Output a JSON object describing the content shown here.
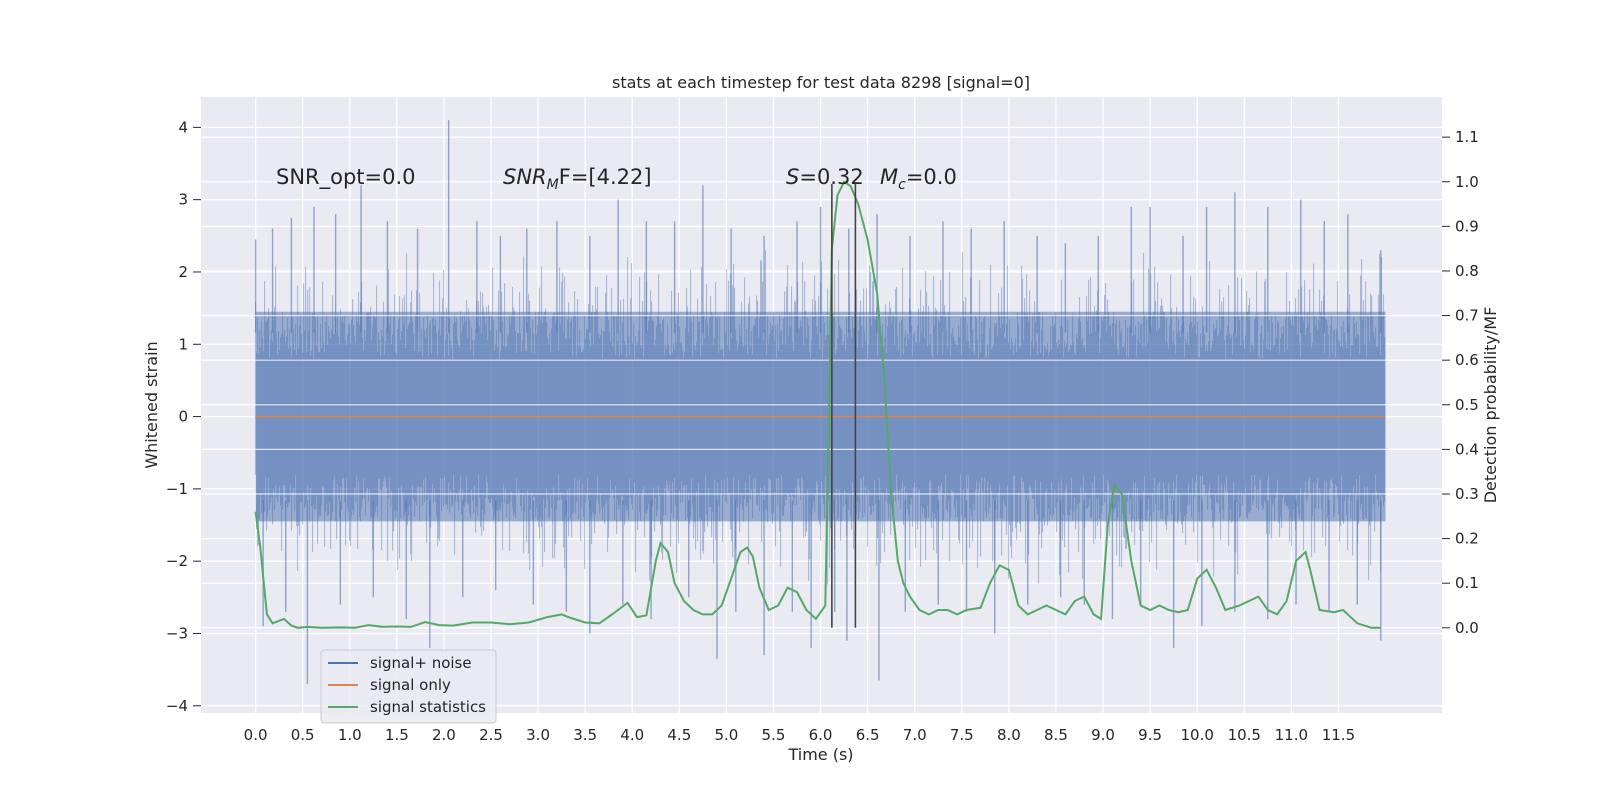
{
  "chart_data": {
    "type": "line",
    "title": "stats at each timestep for test data 8298 [signal=0]",
    "xlabel": "Time (s)",
    "ylabel": "Whitened strain",
    "y2label": "Detection probability/MF",
    "xlim": [
      -0.58,
      12.6
    ],
    "ylim": [
      -4.1,
      4.42
    ],
    "y2lim": [
      -0.191,
      1.19
    ],
    "xticks": [
      0.0,
      0.5,
      1.0,
      1.5,
      2.0,
      2.5,
      3.0,
      3.5,
      4.0,
      4.5,
      5.0,
      5.5,
      6.0,
      6.5,
      7.0,
      7.5,
      8.0,
      8.5,
      9.0,
      9.5,
      10.0,
      10.5,
      11.0,
      11.5
    ],
    "xtick_labels": [
      "0.0",
      "0.5",
      "1.0",
      "1.5",
      "2.0",
      "2.5",
      "3.0",
      "3.5",
      "4.0",
      "4.5",
      "5.0",
      "5.5",
      "6.0",
      "6.5",
      "7.0",
      "7.5",
      "8.0",
      "8.5",
      "9.0",
      "9.5",
      "10.0",
      "10.5",
      "11.0",
      "11.5"
    ],
    "yticks": [
      -4,
      -3,
      -2,
      -1,
      0,
      1,
      2,
      3,
      4
    ],
    "ytick_labels": [
      "−4",
      "−3",
      "−2",
      "−1",
      "0",
      "1",
      "2",
      "3",
      "4"
    ],
    "y2ticks": [
      0.0,
      0.1,
      0.2,
      0.3,
      0.4,
      0.5,
      0.6,
      0.7,
      0.8,
      0.9,
      1.0,
      1.1
    ],
    "y2tick_labels": [
      "0.0",
      "0.1",
      "0.2",
      "0.3",
      "0.4",
      "0.5",
      "0.6",
      "0.7",
      "0.8",
      "0.9",
      "1.0",
      "1.1"
    ],
    "grid": true,
    "legend_position": "lower-left",
    "annotations": {
      "snr_opt": "SNR_opt=0.0",
      "snr_mf_main": "SNR",
      "snr_mf_sub": "M",
      "snr_mf_rest": "F=[4.22]",
      "s_main": "S",
      "s_rest": "=0.32",
      "mc_main": "M",
      "mc_sub": "c",
      "mc_rest": "=0.0"
    },
    "vlines": [
      6.12,
      6.37
    ],
    "series": [
      {
        "name": "signal+ noise",
        "color": "#4c72b0",
        "axis": "left",
        "x_range": [
          0.0,
          12.0
        ],
        "typical_envelope": [
          -1.45,
          1.45
        ],
        "upper_spikes": [
          [
            0.0,
            2.45
          ],
          [
            0.18,
            2.6
          ],
          [
            0.38,
            2.75
          ],
          [
            0.62,
            2.9
          ],
          [
            0.85,
            2.8
          ],
          [
            1.12,
            3.2
          ],
          [
            1.4,
            2.7
          ],
          [
            1.72,
            2.6
          ],
          [
            2.05,
            4.1
          ],
          [
            2.35,
            2.7
          ],
          [
            2.6,
            2.5
          ],
          [
            2.88,
            2.6
          ],
          [
            3.2,
            2.7
          ],
          [
            3.55,
            2.5
          ],
          [
            3.85,
            3.0
          ],
          [
            4.15,
            2.7
          ],
          [
            4.45,
            2.7
          ],
          [
            4.75,
            3.2
          ],
          [
            5.05,
            2.6
          ],
          [
            5.4,
            2.5
          ],
          [
            5.75,
            2.7
          ],
          [
            6.0,
            2.9
          ],
          [
            6.3,
            2.6
          ],
          [
            6.6,
            2.8
          ],
          [
            6.95,
            2.5
          ],
          [
            7.3,
            2.7
          ],
          [
            7.6,
            2.6
          ],
          [
            7.95,
            2.7
          ],
          [
            8.3,
            2.5
          ],
          [
            8.6,
            2.4
          ],
          [
            8.95,
            2.5
          ],
          [
            9.3,
            2.9
          ],
          [
            9.5,
            2.9
          ],
          [
            9.85,
            2.5
          ],
          [
            10.1,
            2.9
          ],
          [
            10.4,
            3.1
          ],
          [
            10.75,
            2.9
          ],
          [
            11.1,
            3.0
          ],
          [
            11.35,
            2.7
          ],
          [
            11.6,
            2.8
          ],
          [
            11.95,
            2.3
          ]
        ],
        "lower_spikes": [
          [
            0.08,
            -2.9
          ],
          [
            0.32,
            -2.7
          ],
          [
            0.55,
            -3.7
          ],
          [
            0.9,
            -2.6
          ],
          [
            1.25,
            -2.5
          ],
          [
            1.6,
            -2.8
          ],
          [
            1.85,
            -3.2
          ],
          [
            2.2,
            -2.5
          ],
          [
            2.55,
            -2.4
          ],
          [
            2.95,
            -2.6
          ],
          [
            3.3,
            -2.7
          ],
          [
            3.55,
            -3.0
          ],
          [
            3.9,
            -2.6
          ],
          [
            4.2,
            -2.8
          ],
          [
            4.6,
            -2.5
          ],
          [
            4.9,
            -3.35
          ],
          [
            5.1,
            -2.7
          ],
          [
            5.4,
            -3.3
          ],
          [
            5.7,
            -2.7
          ],
          [
            5.9,
            -3.2
          ],
          [
            6.15,
            -2.7
          ],
          [
            6.28,
            -3.1
          ],
          [
            6.62,
            -3.65
          ],
          [
            6.9,
            -2.7
          ],
          [
            7.25,
            -2.6
          ],
          [
            7.55,
            -2.7
          ],
          [
            7.85,
            -3.0
          ],
          [
            8.2,
            -2.6
          ],
          [
            8.55,
            -2.5
          ],
          [
            8.8,
            -2.6
          ],
          [
            9.1,
            -2.8
          ],
          [
            9.4,
            -2.6
          ],
          [
            9.75,
            -3.2
          ],
          [
            10.05,
            -2.9
          ],
          [
            10.4,
            -2.7
          ],
          [
            10.75,
            -2.8
          ],
          [
            11.05,
            -2.6
          ],
          [
            11.4,
            -2.7
          ],
          [
            11.7,
            -2.6
          ],
          [
            11.95,
            -3.1
          ]
        ]
      },
      {
        "name": "signal only",
        "color": "#dd8452",
        "axis": "left",
        "x": [
          0.0,
          12.0
        ],
        "y": [
          0.0,
          0.0
        ]
      },
      {
        "name": "signal statistics",
        "color": "#55a868",
        "axis": "right",
        "x": [
          0.0,
          0.05,
          0.12,
          0.18,
          0.3,
          0.38,
          0.45,
          0.55,
          0.7,
          0.9,
          1.05,
          1.2,
          1.35,
          1.5,
          1.65,
          1.8,
          1.95,
          2.1,
          2.3,
          2.5,
          2.7,
          2.9,
          3.1,
          3.25,
          3.35,
          3.5,
          3.65,
          3.8,
          3.95,
          4.05,
          4.15,
          4.25,
          4.3,
          4.38,
          4.45,
          4.55,
          4.65,
          4.75,
          4.85,
          4.95,
          5.05,
          5.15,
          5.22,
          5.28,
          5.35,
          5.45,
          5.55,
          5.65,
          5.75,
          5.85,
          5.95,
          6.05,
          6.12,
          6.18,
          6.25,
          6.32,
          6.4,
          6.5,
          6.6,
          6.68,
          6.75,
          6.82,
          6.88,
          6.95,
          7.05,
          7.15,
          7.25,
          7.35,
          7.45,
          7.55,
          7.7,
          7.8,
          7.9,
          8.0,
          8.1,
          8.2,
          8.3,
          8.4,
          8.5,
          8.6,
          8.7,
          8.8,
          8.9,
          8.98,
          9.05,
          9.12,
          9.2,
          9.3,
          9.4,
          9.5,
          9.6,
          9.7,
          9.8,
          9.9,
          10.0,
          10.1,
          10.2,
          10.3,
          10.45,
          10.55,
          10.65,
          10.75,
          10.85,
          10.95,
          11.05,
          11.15,
          11.2,
          11.3,
          11.45,
          11.55,
          11.7,
          11.85,
          11.95
        ],
        "y": [
          0.26,
          0.18,
          0.03,
          0.01,
          0.02,
          0.005,
          0.0,
          0.002,
          0.0,
          0.001,
          0.0,
          0.006,
          0.002,
          0.003,
          0.002,
          0.013,
          0.006,
          0.005,
          0.012,
          0.012,
          0.008,
          0.012,
          0.024,
          0.03,
          0.022,
          0.012,
          0.01,
          0.032,
          0.056,
          0.024,
          0.028,
          0.15,
          0.19,
          0.17,
          0.1,
          0.06,
          0.04,
          0.03,
          0.03,
          0.05,
          0.11,
          0.17,
          0.18,
          0.16,
          0.09,
          0.04,
          0.05,
          0.09,
          0.08,
          0.04,
          0.02,
          0.05,
          0.85,
          0.97,
          1.0,
          0.99,
          0.95,
          0.87,
          0.75,
          0.55,
          0.3,
          0.15,
          0.1,
          0.07,
          0.04,
          0.03,
          0.04,
          0.04,
          0.03,
          0.04,
          0.045,
          0.1,
          0.14,
          0.13,
          0.05,
          0.03,
          0.04,
          0.05,
          0.04,
          0.03,
          0.06,
          0.07,
          0.03,
          0.02,
          0.23,
          0.32,
          0.3,
          0.15,
          0.05,
          0.04,
          0.05,
          0.04,
          0.035,
          0.04,
          0.11,
          0.13,
          0.09,
          0.04,
          0.05,
          0.06,
          0.07,
          0.04,
          0.03,
          0.06,
          0.15,
          0.17,
          0.13,
          0.04,
          0.035,
          0.04,
          0.01,
          0.0,
          0.0
        ]
      }
    ]
  }
}
